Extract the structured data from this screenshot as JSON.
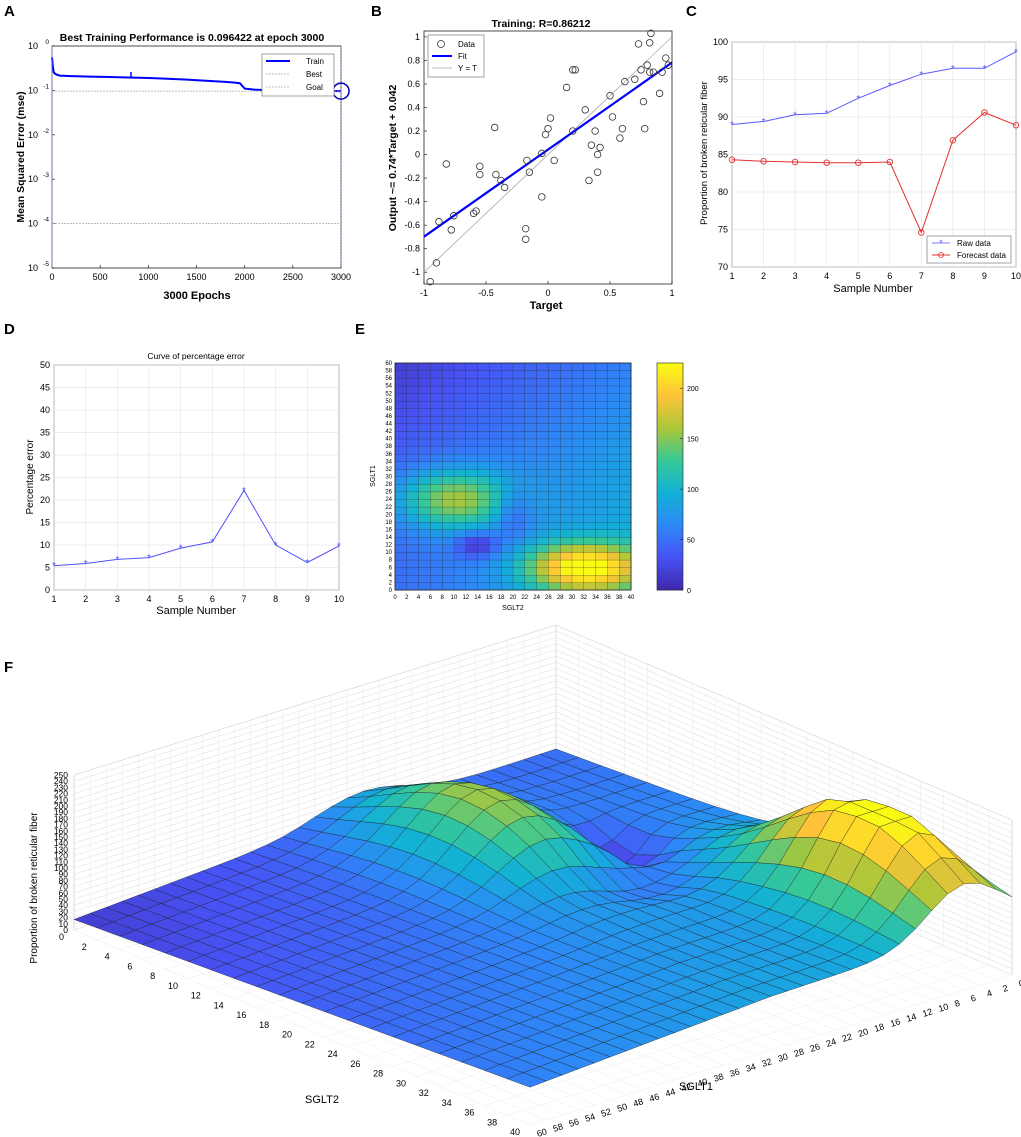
{
  "panel_labels": [
    "A",
    "B",
    "C",
    "D",
    "E",
    "F"
  ],
  "chart_data": [
    {
      "id": "A",
      "type": "line",
      "title": "Best Training Performance is 0.096422 at epoch 3000",
      "xlabel": "3000 Epochs",
      "ylabel": "Mean Squared Error  (mse)",
      "xlim": [
        0,
        3000
      ],
      "ylim_log10": [
        -5,
        0
      ],
      "xticks": [
        "0",
        "500",
        "1000",
        "1500",
        "2000",
        "2500",
        "3000"
      ],
      "yticks": [
        {
          "base": "10",
          "exp": "0"
        },
        {
          "base": "10",
          "exp": "-1"
        },
        {
          "base": "10",
          "exp": "-2"
        },
        {
          "base": "10",
          "exp": "-3"
        },
        {
          "base": "10",
          "exp": "-4"
        },
        {
          "base": "10",
          "exp": "-5"
        }
      ],
      "legend": [
        "Train",
        "Best",
        "Goal"
      ],
      "legend_position": "top-right",
      "series": [
        {
          "name": "Train",
          "color": "#0000ff",
          "x": [
            0,
            10,
            20,
            40,
            80,
            200,
            400,
            600,
            800,
            1000,
            1200,
            1400,
            1600,
            1800,
            1900,
            1950,
            2000,
            2100,
            2300,
            2600,
            3000
          ],
          "y": [
            0.55,
            0.32,
            0.25,
            0.23,
            0.215,
            0.21,
            0.205,
            0.2,
            0.195,
            0.19,
            0.183,
            0.175,
            0.165,
            0.155,
            0.15,
            0.145,
            0.11,
            0.104,
            0.1,
            0.098,
            0.0964
          ]
        },
        {
          "name": "Best",
          "color": "#aaaaaa",
          "x": [
            0,
            3000
          ],
          "y": [
            0.096422,
            0.096422
          ]
        },
        {
          "name": "Goal",
          "color": "#aaaaaa",
          "x": [
            0,
            3000
          ],
          "y": [
            0.0001,
            0.0001
          ]
        }
      ],
      "best_point": {
        "x": 3000,
        "y": 0.096422
      }
    },
    {
      "id": "B",
      "type": "scatter",
      "title": "Training: R=0.86212",
      "xlabel": "Target",
      "ylabel": "Output ~= 0.74*Target + 0.042",
      "xlim": [
        -1,
        1
      ],
      "ylim": [
        -1.1,
        1.05
      ],
      "xticks": [
        "-1",
        "-0.5",
        "0",
        "0.5",
        "1"
      ],
      "yticks": [
        "-1",
        "-0.8",
        "-0.6",
        "-0.4",
        "-0.2",
        "0",
        "0.2",
        "0.4",
        "0.6",
        "0.8",
        "1"
      ],
      "legend": [
        "Data",
        "Fit",
        "Y = T"
      ],
      "legend_position": "top-left",
      "fit": {
        "slope": 0.74,
        "intercept": 0.042
      },
      "points": [
        [
          -0.95,
          -1.08
        ],
        [
          -0.9,
          -0.92
        ],
        [
          -0.88,
          -0.57
        ],
        [
          -0.82,
          -0.08
        ],
        [
          -0.78,
          -0.64
        ],
        [
          -0.76,
          -0.52
        ],
        [
          -0.6,
          -0.5
        ],
        [
          -0.58,
          -0.48
        ],
        [
          -0.55,
          -0.1
        ],
        [
          -0.55,
          -0.17
        ],
        [
          -0.43,
          0.23
        ],
        [
          -0.42,
          -0.17
        ],
        [
          -0.38,
          -0.22
        ],
        [
          -0.35,
          -0.28
        ],
        [
          -0.18,
          -0.63
        ],
        [
          -0.18,
          -0.72
        ],
        [
          -0.17,
          -0.05
        ],
        [
          -0.15,
          -0.15
        ],
        [
          -0.05,
          -0.36
        ],
        [
          -0.05,
          0.01
        ],
        [
          -0.02,
          0.17
        ],
        [
          0.0,
          0.22
        ],
        [
          0.02,
          0.31
        ],
        [
          0.05,
          -0.05
        ],
        [
          0.15,
          0.57
        ],
        [
          0.2,
          0.72
        ],
        [
          0.22,
          0.72
        ],
        [
          0.2,
          0.2
        ],
        [
          0.3,
          0.38
        ],
        [
          0.33,
          -0.22
        ],
        [
          0.35,
          0.08
        ],
        [
          0.38,
          0.2
        ],
        [
          0.4,
          0.0
        ],
        [
          0.42,
          0.06
        ],
        [
          0.4,
          -0.15
        ],
        [
          0.5,
          0.5
        ],
        [
          0.52,
          0.32
        ],
        [
          0.58,
          0.14
        ],
        [
          0.6,
          0.22
        ],
        [
          0.62,
          0.62
        ],
        [
          0.7,
          0.64
        ],
        [
          0.73,
          0.94
        ],
        [
          0.75,
          0.72
        ],
        [
          0.77,
          0.45
        ],
        [
          0.78,
          0.22
        ],
        [
          0.8,
          0.76
        ],
        [
          0.82,
          0.95
        ],
        [
          0.82,
          0.7
        ],
        [
          0.83,
          1.03
        ],
        [
          0.85,
          0.7
        ],
        [
          0.9,
          0.52
        ],
        [
          0.92,
          0.7
        ],
        [
          0.95,
          0.82
        ],
        [
          0.97,
          0.76
        ]
      ]
    },
    {
      "id": "C",
      "type": "line",
      "xlabel": "Sample Number",
      "ylabel": "Proportion of broken reticular fiber",
      "xlim": [
        1,
        10
      ],
      "ylim": [
        70,
        100
      ],
      "xticks": [
        "1",
        "2",
        "3",
        "4",
        "5",
        "6",
        "7",
        "8",
        "9",
        "10"
      ],
      "yticks": [
        "70",
        "75",
        "80",
        "85",
        "90",
        "95",
        "100"
      ],
      "legend": [
        "Raw data",
        "Forecast data"
      ],
      "legend_position": "bottom-right",
      "x": [
        1,
        2,
        3,
        4,
        5,
        6,
        7,
        8,
        9,
        10
      ],
      "series": [
        {
          "name": "Raw data",
          "color": "#5a5aff",
          "values": [
            89.0,
            89.4,
            90.3,
            90.5,
            92.5,
            94.2,
            95.7,
            96.5,
            96.5,
            98.7
          ]
        },
        {
          "name": "Forecast data",
          "color": "#e03030",
          "values": [
            84.3,
            84.1,
            84.0,
            83.9,
            83.9,
            84.0,
            74.6,
            86.9,
            90.6,
            88.9
          ]
        }
      ]
    },
    {
      "id": "D",
      "type": "line",
      "title": "Curve of percentage error",
      "xlabel": "Sample Number",
      "ylabel": "Percentage error",
      "xlim": [
        1,
        10
      ],
      "ylim": [
        0,
        50
      ],
      "xticks": [
        "1",
        "2",
        "3",
        "4",
        "5",
        "6",
        "7",
        "8",
        "9",
        "10"
      ],
      "yticks": [
        "0",
        "5",
        "10",
        "15",
        "20",
        "25",
        "30",
        "35",
        "40",
        "45",
        "50"
      ],
      "x": [
        1,
        2,
        3,
        4,
        5,
        6,
        7,
        8,
        9,
        10
      ],
      "series": [
        {
          "name": "Percentage error",
          "color": "#5050ff",
          "values": [
            5.4,
            5.9,
            6.8,
            7.2,
            9.3,
            10.7,
            22.1,
            10.0,
            6.1,
            9.8
          ]
        }
      ]
    },
    {
      "id": "E",
      "type": "heatmap",
      "xlabel": "SGLT2",
      "ylabel": "SGLT1",
      "xlim": [
        0,
        40
      ],
      "ylim": [
        0,
        60
      ],
      "xticks": [
        "0",
        "2",
        "4",
        "6",
        "8",
        "10",
        "12",
        "14",
        "16",
        "18",
        "20",
        "22",
        "24",
        "26",
        "28",
        "30",
        "32",
        "34",
        "36",
        "38",
        "40"
      ],
      "yticks": [
        "0",
        "2",
        "4",
        "6",
        "8",
        "10",
        "12",
        "14",
        "16",
        "18",
        "20",
        "22",
        "24",
        "26",
        "28",
        "30",
        "32",
        "34",
        "36",
        "38",
        "40",
        "42",
        "44",
        "46",
        "48",
        "50",
        "52",
        "54",
        "56",
        "58",
        "60"
      ],
      "colorbar": {
        "min": 0,
        "max": 225,
        "ticks": [
          "0",
          "50",
          "100",
          "150",
          "200"
        ]
      },
      "colormap": "parula"
    },
    {
      "id": "F",
      "type": "surface",
      "xlabel": "SGLT2",
      "ylabel": "SGLT1",
      "zlabel": "Proportion of broken reticular fiber",
      "xlim": [
        0,
        40
      ],
      "ylim": [
        0,
        60
      ],
      "zlim": [
        0,
        250
      ],
      "xticks": [
        "0",
        "2",
        "4",
        "6",
        "8",
        "10",
        "12",
        "14",
        "16",
        "18",
        "20",
        "22",
        "24",
        "26",
        "28",
        "30",
        "32",
        "34",
        "36",
        "38",
        "40"
      ],
      "yticks": [
        "0",
        "2",
        "4",
        "6",
        "8",
        "10",
        "12",
        "14",
        "16",
        "18",
        "20",
        "22",
        "24",
        "26",
        "28",
        "30",
        "32",
        "34",
        "36",
        "38",
        "40",
        "42",
        "44",
        "46",
        "48",
        "50",
        "52",
        "54",
        "56",
        "58",
        "60"
      ],
      "zticks": [
        "0",
        "10",
        "20",
        "30",
        "40",
        "50",
        "60",
        "70",
        "80",
        "90",
        "100",
        "110",
        "120",
        "130",
        "140",
        "150",
        "160",
        "170",
        "180",
        "190",
        "200",
        "210",
        "220",
        "230",
        "240",
        "250"
      ],
      "colormap": "parula"
    }
  ]
}
